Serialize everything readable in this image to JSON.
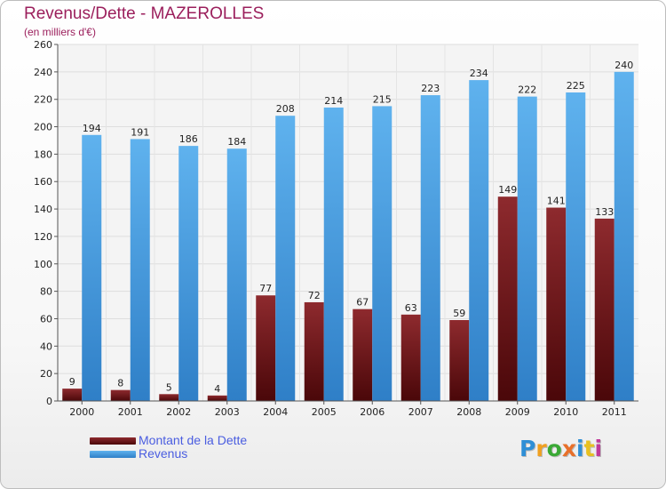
{
  "chart_data": {
    "type": "bar",
    "title": "Revenus/Dette - MAZEROLLES",
    "subtitle": "(en milliers d'€)",
    "xlabel": "",
    "ylabel": "",
    "categories": [
      "2000",
      "2001",
      "2002",
      "2003",
      "2004",
      "2005",
      "2006",
      "2007",
      "2008",
      "2009",
      "2010",
      "2011"
    ],
    "series": [
      {
        "name": "Montant de la Dette",
        "color": "#6b0f12",
        "values": [
          9,
          8,
          5,
          4,
          77,
          72,
          67,
          63,
          59,
          149,
          141,
          133
        ]
      },
      {
        "name": "Revenus",
        "color": "#4a9fe3",
        "values": [
          194,
          191,
          186,
          184,
          208,
          214,
          215,
          223,
          234,
          222,
          225,
          240
        ]
      }
    ],
    "ylim": [
      0,
      260
    ],
    "yticks": [
      0,
      20,
      40,
      60,
      80,
      100,
      120,
      140,
      160,
      180,
      200,
      220,
      240,
      260
    ],
    "grid": true,
    "legend": "bottom-left"
  },
  "logo": {
    "letters": [
      "P",
      "r",
      "o",
      "x",
      "i",
      "t",
      "i"
    ],
    "colors": [
      "#2f8fd6",
      "#f0a020",
      "#3aa935",
      "#e8702a",
      "#2f8fd6",
      "#e8c020",
      "#c0399a"
    ]
  }
}
